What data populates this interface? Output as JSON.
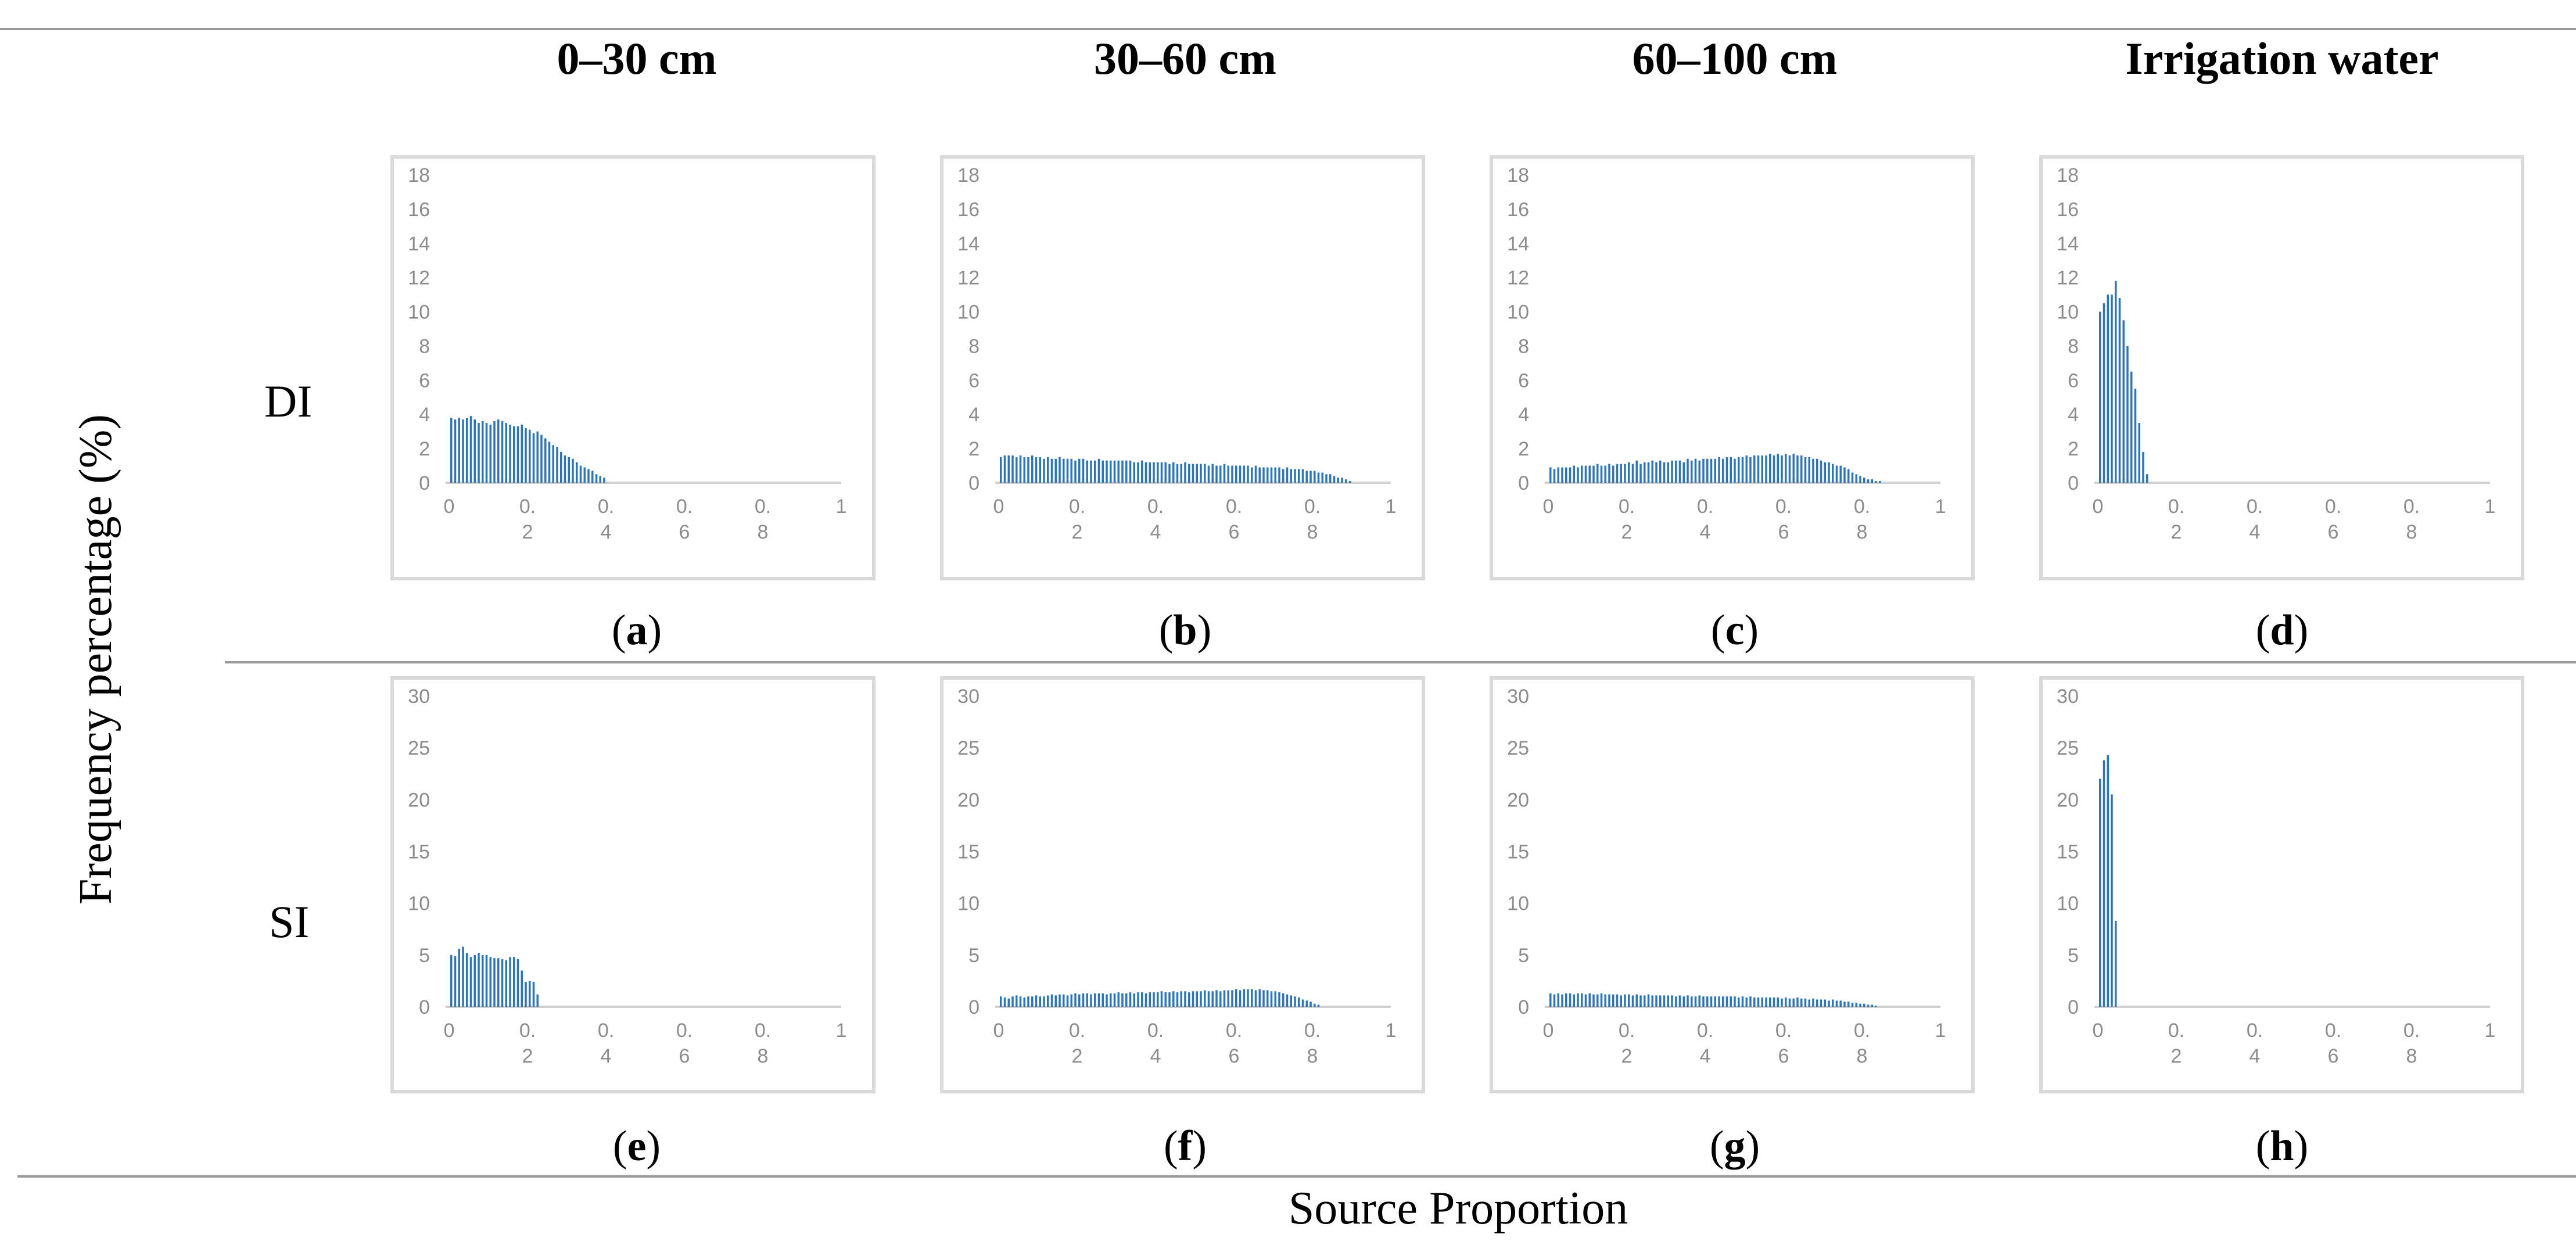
{
  "colors": {
    "bar": "#2e75b6",
    "axis": "#d0d0d0",
    "tick_text": "#8c8c8c",
    "frame": "#d9d9d9"
  },
  "axis_labels": {
    "y": "Frequency percentage (%)",
    "x": "Source Proportion"
  },
  "columns": [
    "0–30 cm",
    "30–60 cm",
    "60–100 cm",
    "Irrigation water"
  ],
  "rows": [
    "DI",
    "SI"
  ],
  "panels": [
    {
      "open": "(",
      "letter": "a",
      "close": ")"
    },
    {
      "open": "(",
      "letter": "b",
      "close": ")"
    },
    {
      "open": "(",
      "letter": "c",
      "close": ")"
    },
    {
      "open": "(",
      "letter": "d",
      "close": ")"
    },
    {
      "open": "(",
      "letter": "e",
      "close": ")"
    },
    {
      "open": "(",
      "letter": "f",
      "close": ")"
    },
    {
      "open": "(",
      "letter": "g",
      "close": ")"
    },
    {
      "open": "(",
      "letter": "h",
      "close": ")"
    }
  ],
  "x_tick_labels": [
    {
      "top": "0",
      "bottom": ""
    },
    {
      "top": "0.",
      "bottom": "2"
    },
    {
      "top": "0.",
      "bottom": "4"
    },
    {
      "top": "0.",
      "bottom": "6"
    },
    {
      "top": "0.",
      "bottom": "8"
    },
    {
      "top": "1",
      "bottom": ""
    }
  ],
  "chart_data": [
    {
      "type": "bar",
      "panel": "a",
      "row": "DI",
      "column": "0–30 cm",
      "xlim": [
        0,
        1
      ],
      "ylim": [
        0,
        18
      ],
      "yticks": [
        0,
        2,
        4,
        6,
        8,
        10,
        12,
        14,
        16,
        18
      ],
      "x_start": 0,
      "x_step": 0.01,
      "values": [
        3.8,
        3.7,
        3.8,
        3.7,
        3.8,
        3.9,
        3.7,
        3.5,
        3.6,
        3.5,
        3.4,
        3.6,
        3.7,
        3.6,
        3.5,
        3.4,
        3.3,
        3.3,
        3.4,
        3.2,
        3.1,
        2.9,
        3.0,
        2.8,
        2.6,
        2.4,
        2.2,
        2.1,
        1.8,
        1.6,
        1.5,
        1.4,
        1.2,
        1.0,
        0.9,
        0.8,
        0.7,
        0.5,
        0.4,
        0.3
      ]
    },
    {
      "type": "bar",
      "panel": "b",
      "row": "DI",
      "column": "30–60 cm",
      "xlim": [
        0,
        1
      ],
      "ylim": [
        0,
        18
      ],
      "yticks": [
        0,
        2,
        4,
        6,
        8,
        10,
        12,
        14,
        16,
        18
      ],
      "x_start": 0,
      "x_step": 0.01,
      "values": [
        1.5,
        1.6,
        1.6,
        1.6,
        1.5,
        1.6,
        1.5,
        1.5,
        1.6,
        1.5,
        1.5,
        1.4,
        1.5,
        1.4,
        1.4,
        1.5,
        1.4,
        1.4,
        1.4,
        1.3,
        1.4,
        1.4,
        1.3,
        1.3,
        1.3,
        1.4,
        1.3,
        1.3,
        1.3,
        1.3,
        1.3,
        1.3,
        1.3,
        1.3,
        1.2,
        1.2,
        1.3,
        1.2,
        1.2,
        1.2,
        1.2,
        1.2,
        1.2,
        1.1,
        1.2,
        1.1,
        1.1,
        1.2,
        1.1,
        1.1,
        1.1,
        1.1,
        1.1,
        1.0,
        1.1,
        1.0,
        1.0,
        1.1,
        1.0,
        1.0,
        1.0,
        1.0,
        1.0,
        1.0,
        0.9,
        1.0,
        0.9,
        0.9,
        0.9,
        0.9,
        0.9,
        0.9,
        0.8,
        0.9,
        0.8,
        0.8,
        0.8,
        0.8,
        0.7,
        0.7,
        0.7,
        0.6,
        0.6,
        0.5,
        0.5,
        0.4,
        0.3,
        0.3,
        0.2,
        0.1
      ]
    },
    {
      "type": "bar",
      "panel": "c",
      "row": "DI",
      "column": "60–100 cm",
      "xlim": [
        0,
        1
      ],
      "ylim": [
        0,
        18
      ],
      "yticks": [
        0,
        2,
        4,
        6,
        8,
        10,
        12,
        14,
        16,
        18
      ],
      "x_start": 0,
      "x_step": 0.01,
      "values": [
        0.9,
        0.8,
        0.9,
        0.9,
        0.9,
        0.9,
        1.0,
        0.9,
        1.0,
        1.0,
        1.0,
        1.0,
        1.1,
        1.0,
        1.0,
        1.1,
        1.0,
        1.1,
        1.1,
        1.1,
        1.2,
        1.1,
        1.3,
        1.1,
        1.2,
        1.2,
        1.3,
        1.2,
        1.3,
        1.2,
        1.2,
        1.3,
        1.3,
        1.3,
        1.2,
        1.4,
        1.3,
        1.4,
        1.3,
        1.4,
        1.4,
        1.4,
        1.4,
        1.5,
        1.4,
        1.5,
        1.5,
        1.4,
        1.5,
        1.5,
        1.6,
        1.5,
        1.6,
        1.6,
        1.6,
        1.6,
        1.7,
        1.6,
        1.7,
        1.6,
        1.7,
        1.6,
        1.7,
        1.6,
        1.6,
        1.5,
        1.5,
        1.4,
        1.4,
        1.3,
        1.2,
        1.2,
        1.1,
        1.0,
        1.0,
        0.9,
        0.8,
        0.6,
        0.5,
        0.4,
        0.3,
        0.2,
        0.2,
        0.1,
        0.1
      ]
    },
    {
      "type": "bar",
      "panel": "d",
      "row": "DI",
      "column": "Irrigation water",
      "xlim": [
        0,
        1
      ],
      "ylim": [
        0,
        18
      ],
      "yticks": [
        0,
        2,
        4,
        6,
        8,
        10,
        12,
        14,
        16,
        18
      ],
      "x_start": 0,
      "x_step": 0.01,
      "values": [
        10.0,
        10.5,
        11.0,
        11.0,
        11.8,
        10.8,
        9.5,
        8.0,
        6.5,
        5.5,
        3.5,
        1.8,
        0.5
      ]
    },
    {
      "type": "bar",
      "panel": "e",
      "row": "SI",
      "column": "0–30 cm",
      "xlim": [
        0,
        1
      ],
      "ylim": [
        0,
        30
      ],
      "yticks": [
        0,
        5,
        10,
        15,
        20,
        25,
        30
      ],
      "x_start": 0,
      "x_step": 0.01,
      "values": [
        5.0,
        4.9,
        5.6,
        5.8,
        5.2,
        4.8,
        5.0,
        5.2,
        5.0,
        5.0,
        4.8,
        4.7,
        4.7,
        4.6,
        4.5,
        4.8,
        4.8,
        4.6,
        3.5,
        2.4,
        2.5,
        2.4,
        1.2
      ]
    },
    {
      "type": "bar",
      "panel": "f",
      "row": "SI",
      "column": "30–60 cm",
      "xlim": [
        0,
        1
      ],
      "ylim": [
        0,
        30
      ],
      "yticks": [
        0,
        5,
        10,
        15,
        20,
        25,
        30
      ],
      "x_start": 0,
      "x_step": 0.01,
      "values": [
        1.0,
        0.9,
        0.8,
        1.0,
        1.1,
        1.0,
        0.9,
        1.0,
        1.0,
        1.1,
        1.0,
        1.0,
        1.1,
        1.2,
        1.1,
        1.2,
        1.2,
        1.1,
        1.2,
        1.3,
        1.2,
        1.3,
        1.3,
        1.2,
        1.3,
        1.3,
        1.3,
        1.2,
        1.3,
        1.3,
        1.4,
        1.3,
        1.3,
        1.4,
        1.3,
        1.4,
        1.4,
        1.3,
        1.4,
        1.4,
        1.4,
        1.5,
        1.4,
        1.4,
        1.5,
        1.4,
        1.5,
        1.5,
        1.4,
        1.5,
        1.5,
        1.5,
        1.6,
        1.5,
        1.5,
        1.6,
        1.5,
        1.6,
        1.6,
        1.6,
        1.7,
        1.6,
        1.7,
        1.7,
        1.7,
        1.6,
        1.7,
        1.6,
        1.6,
        1.5,
        1.5,
        1.4,
        1.3,
        1.2,
        1.1,
        1.0,
        0.9,
        0.7,
        0.6,
        0.5,
        0.3,
        0.2
      ]
    },
    {
      "type": "bar",
      "panel": "g",
      "row": "SI",
      "column": "60–100 cm",
      "xlim": [
        0,
        1
      ],
      "ylim": [
        0,
        30
      ],
      "yticks": [
        0,
        5,
        10,
        15,
        20,
        25,
        30
      ],
      "x_start": 0,
      "x_step": 0.01,
      "values": [
        1.3,
        1.2,
        1.3,
        1.2,
        1.3,
        1.3,
        1.2,
        1.3,
        1.3,
        1.2,
        1.3,
        1.2,
        1.2,
        1.3,
        1.2,
        1.2,
        1.2,
        1.2,
        1.1,
        1.2,
        1.2,
        1.1,
        1.2,
        1.1,
        1.1,
        1.2,
        1.1,
        1.1,
        1.1,
        1.1,
        1.1,
        1.1,
        1.0,
        1.1,
        1.0,
        1.1,
        1.0,
        1.0,
        1.1,
        1.0,
        1.0,
        1.0,
        1.0,
        1.0,
        1.0,
        1.0,
        1.0,
        1.0,
        0.9,
        1.0,
        0.9,
        1.0,
        0.9,
        0.9,
        0.9,
        0.9,
        0.9,
        0.9,
        0.9,
        0.8,
        0.9,
        0.8,
        0.8,
        0.9,
        0.8,
        0.8,
        0.7,
        0.8,
        0.7,
        0.7,
        0.7,
        0.6,
        0.7,
        0.6,
        0.6,
        0.5,
        0.5,
        0.4,
        0.4,
        0.3,
        0.3,
        0.2,
        0.2,
        0.1
      ]
    },
    {
      "type": "bar",
      "panel": "h",
      "row": "SI",
      "column": "Irrigation water",
      "xlim": [
        0,
        1
      ],
      "ylim": [
        0,
        30
      ],
      "yticks": [
        0,
        5,
        10,
        15,
        20,
        25,
        30
      ],
      "x_start": 0,
      "x_step": 0.01,
      "values": [
        22.0,
        23.8,
        24.3,
        20.5,
        8.3
      ]
    }
  ]
}
